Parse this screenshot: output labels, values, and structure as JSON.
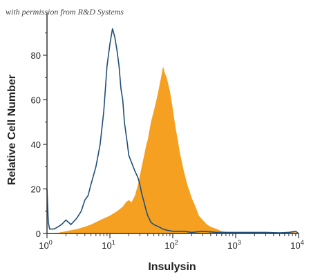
{
  "watermark": "with permission from R&D Systems",
  "chart_data": {
    "type": "area",
    "xscale": "log10",
    "xlim": [
      1,
      10000
    ],
    "ylim": [
      0,
      100
    ],
    "xlabel": "Insulysin",
    "ylabel": "Relative Cell Number",
    "x_ticks": [
      {
        "value": 1,
        "base": "10",
        "exp": "0"
      },
      {
        "value": 10,
        "base": "10",
        "exp": "1"
      },
      {
        "value": 100,
        "base": "10",
        "exp": "2"
      },
      {
        "value": 1000,
        "base": "10",
        "exp": "3"
      },
      {
        "value": 10000,
        "base": "10",
        "exp": "4"
      }
    ],
    "y_ticks": [
      {
        "value": 0,
        "label": "0"
      },
      {
        "value": 20,
        "label": "20"
      },
      {
        "value": 40,
        "label": "40"
      },
      {
        "value": 60,
        "label": "60"
      },
      {
        "value": 80,
        "label": "80"
      }
    ],
    "series": [
      {
        "style": "filled",
        "color": "#f5a020",
        "points": [
          [
            1,
            0
          ],
          [
            1.5,
            0.3
          ],
          [
            2,
            1
          ],
          [
            3,
            2
          ],
          [
            4,
            3
          ],
          [
            5,
            4
          ],
          [
            7,
            6
          ],
          [
            10,
            8
          ],
          [
            13,
            10
          ],
          [
            16,
            12
          ],
          [
            18,
            14
          ],
          [
            20,
            15
          ],
          [
            22,
            14
          ],
          [
            25,
            17
          ],
          [
            28,
            22
          ],
          [
            30,
            26
          ],
          [
            32,
            30
          ],
          [
            35,
            35
          ],
          [
            38,
            40
          ],
          [
            40,
            42
          ],
          [
            45,
            50
          ],
          [
            50,
            55
          ],
          [
            55,
            60
          ],
          [
            60,
            65
          ],
          [
            65,
            70
          ],
          [
            70,
            75
          ],
          [
            75,
            72
          ],
          [
            80,
            70
          ],
          [
            90,
            64
          ],
          [
            100,
            56
          ],
          [
            110,
            48
          ],
          [
            120,
            42
          ],
          [
            130,
            36
          ],
          [
            150,
            28
          ],
          [
            170,
            22
          ],
          [
            200,
            16
          ],
          [
            230,
            12
          ],
          [
            260,
            8
          ],
          [
            300,
            6
          ],
          [
            350,
            4
          ],
          [
            400,
            3
          ],
          [
            500,
            2
          ],
          [
            600,
            1
          ],
          [
            800,
            0.5
          ],
          [
            1000,
            0.5
          ],
          [
            2000,
            0.3
          ],
          [
            3000,
            0.5
          ],
          [
            4000,
            0.3
          ],
          [
            6000,
            0.5
          ],
          [
            8000,
            1
          ],
          [
            10000,
            0
          ]
        ]
      },
      {
        "style": "outline",
        "color": "#1f4e79",
        "points": [
          [
            1,
            20
          ],
          [
            1.05,
            5
          ],
          [
            1.1,
            2
          ],
          [
            1.3,
            2
          ],
          [
            1.5,
            3
          ],
          [
            1.7,
            4
          ],
          [
            2,
            6
          ],
          [
            2.2,
            5
          ],
          [
            2.4,
            4
          ],
          [
            2.8,
            6
          ],
          [
            3,
            7
          ],
          [
            3.5,
            10
          ],
          [
            4,
            15
          ],
          [
            4.5,
            17
          ],
          [
            5,
            22
          ],
          [
            6,
            30
          ],
          [
            7,
            40
          ],
          [
            8,
            55
          ],
          [
            9,
            75
          ],
          [
            10,
            85
          ],
          [
            11,
            92
          ],
          [
            12,
            88
          ],
          [
            13,
            82
          ],
          [
            14,
            75
          ],
          [
            15,
            65
          ],
          [
            16,
            60
          ],
          [
            17,
            50
          ],
          [
            18,
            45
          ],
          [
            19,
            40
          ],
          [
            20,
            35
          ],
          [
            22,
            32
          ],
          [
            25,
            28
          ],
          [
            28,
            25
          ],
          [
            30,
            22
          ],
          [
            32,
            18
          ],
          [
            35,
            14
          ],
          [
            38,
            10
          ],
          [
            40,
            8
          ],
          [
            45,
            5
          ],
          [
            50,
            4
          ],
          [
            60,
            3
          ],
          [
            70,
            2
          ],
          [
            80,
            1.5
          ],
          [
            100,
            1
          ],
          [
            150,
            1
          ],
          [
            200,
            0.5
          ],
          [
            300,
            1
          ],
          [
            500,
            0.5
          ],
          [
            1000,
            0.5
          ],
          [
            2000,
            0.5
          ],
          [
            3000,
            0.5
          ],
          [
            5000,
            0.3
          ],
          [
            7000,
            0.5
          ],
          [
            9000,
            1
          ],
          [
            10000,
            0
          ]
        ]
      }
    ]
  }
}
